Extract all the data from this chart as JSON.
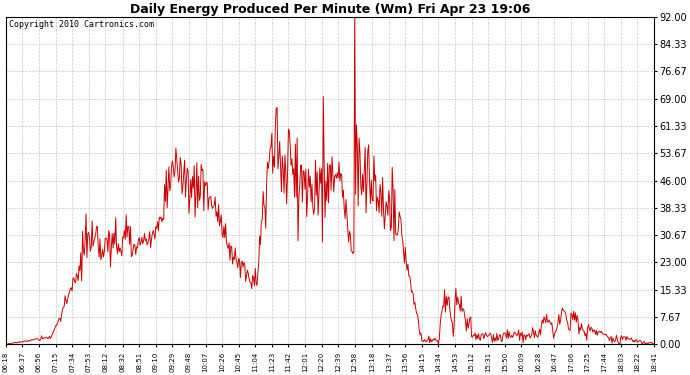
{
  "title": "Daily Energy Produced Per Minute (Wm) Fri Apr 23 19:06",
  "copyright": "Copyright 2010 Cartronics.com",
  "line_color": "#cc0000",
  "background_color": "#ffffff",
  "plot_bg_color": "#ffffff",
  "grid_color": "#bbbbbb",
  "ylim": [
    0,
    92.0
  ],
  "yticks": [
    0.0,
    7.67,
    15.33,
    23.0,
    30.67,
    38.33,
    46.0,
    53.67,
    61.33,
    69.0,
    76.67,
    84.33,
    92.0
  ],
  "xtick_labels": [
    "06:18",
    "06:37",
    "06:56",
    "07:15",
    "07:34",
    "07:53",
    "08:12",
    "08:32",
    "08:51",
    "09:10",
    "09:29",
    "09:48",
    "10:07",
    "10:26",
    "10:45",
    "11:04",
    "11:23",
    "11:42",
    "12:01",
    "12:20",
    "12:39",
    "12:58",
    "13:18",
    "13:37",
    "13:56",
    "14:15",
    "14:34",
    "14:53",
    "15:12",
    "15:31",
    "15:50",
    "16:09",
    "16:28",
    "16:47",
    "17:06",
    "17:25",
    "17:44",
    "18:03",
    "18:22",
    "18:41"
  ]
}
